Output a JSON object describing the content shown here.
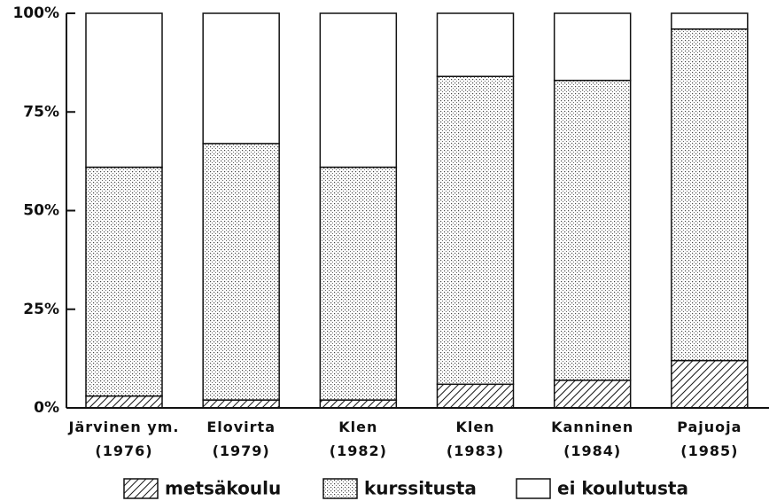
{
  "chart_data": {
    "type": "stacked_bar",
    "categories": [
      "Järvinen ym.\n(1976)",
      "Elovirta\n(1979)",
      "Klen\n(1982)",
      "Klen\n(1983)",
      "Kanninen\n(1984)",
      "Pajuoja\n(1985)"
    ],
    "series": [
      {
        "name": "metsäkoulu",
        "color": "#111111",
        "pattern": "hatch",
        "values": [
          3,
          2,
          2,
          6,
          7,
          12
        ]
      },
      {
        "name": "kurssitusta",
        "color": "#111111",
        "pattern": "dots",
        "values": [
          58,
          65,
          59,
          78,
          76,
          84
        ]
      },
      {
        "name": "ei koulutusta",
        "color": "#111111",
        "pattern": "none",
        "values": [
          39,
          33,
          39,
          16,
          17,
          4
        ]
      }
    ],
    "ylim": [
      0,
      100
    ],
    "yticks": [
      {
        "value": 0,
        "label": "0%"
      },
      {
        "value": 25,
        "label": "25%"
      },
      {
        "value": 50,
        "label": "50%"
      },
      {
        "value": 75,
        "label": "75%"
      },
      {
        "value": 100,
        "label": "100%"
      }
    ],
    "grid": false
  }
}
